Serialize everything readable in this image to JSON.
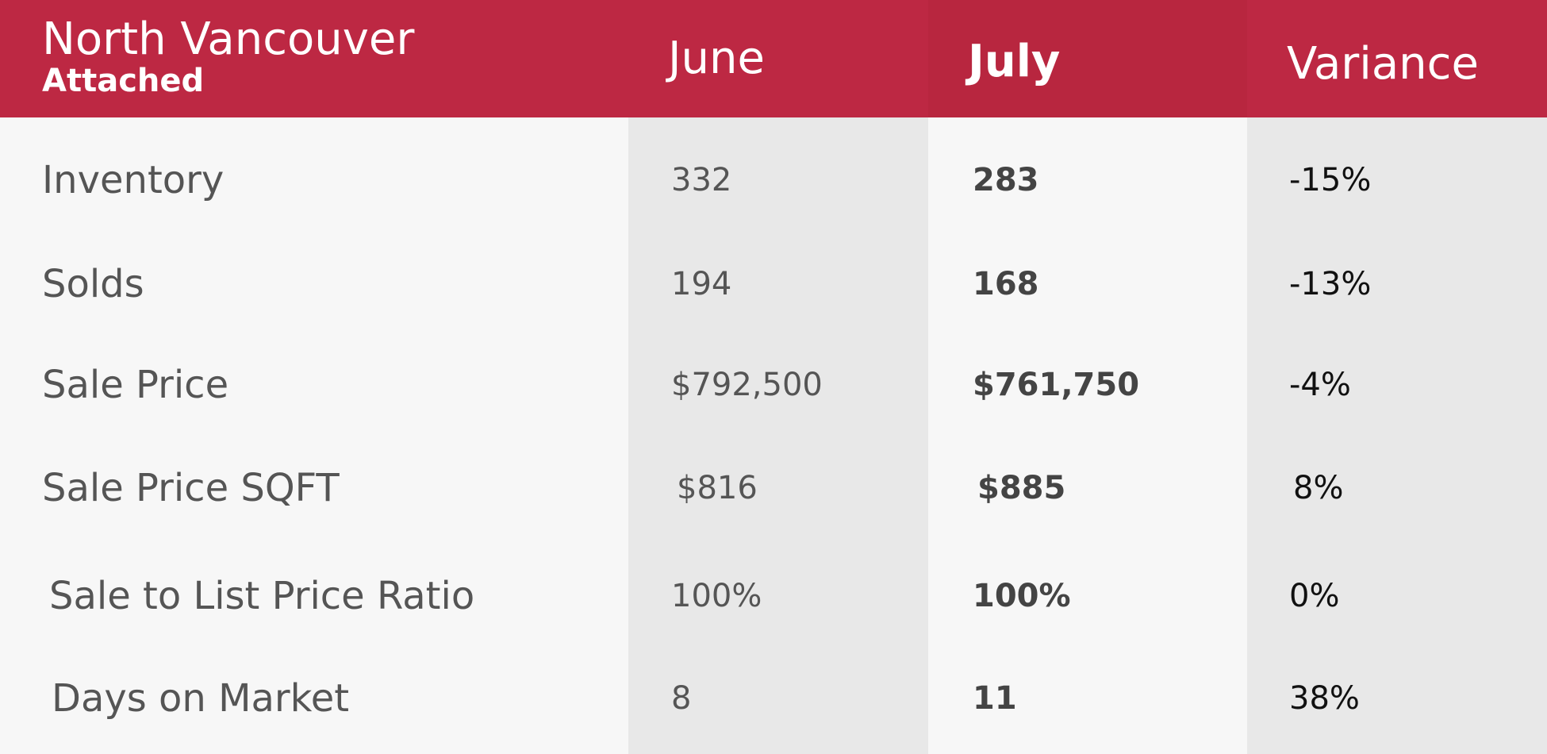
{
  "header": {
    "title": "North Vancouver",
    "subtitle": "Attached",
    "columns": {
      "june": "June",
      "july": "July",
      "variance": "Variance"
    }
  },
  "rows": [
    {
      "metric": "Inventory",
      "june": "332",
      "july": "283",
      "variance": "-15%"
    },
    {
      "metric": "Solds",
      "june": "194",
      "july": "168",
      "variance": "-13%"
    },
    {
      "metric": "Sale Price",
      "june": "$792,500",
      "july": "$761,750",
      "variance": "-4%"
    },
    {
      "metric": "Sale Price SQFT",
      "june": "$816",
      "july": "$885",
      "variance": "8%"
    },
    {
      "metric": "Sale to List Price Ratio",
      "june": "100%",
      "july": "100%",
      "variance": "0%"
    },
    {
      "metric": "Days on Market",
      "june": "8",
      "july": "11",
      "variance": "38%"
    }
  ],
  "colors": {
    "header_red": "#bd2843",
    "row_light": "#f7f7f7",
    "column_shade": "#e8e8e8"
  }
}
